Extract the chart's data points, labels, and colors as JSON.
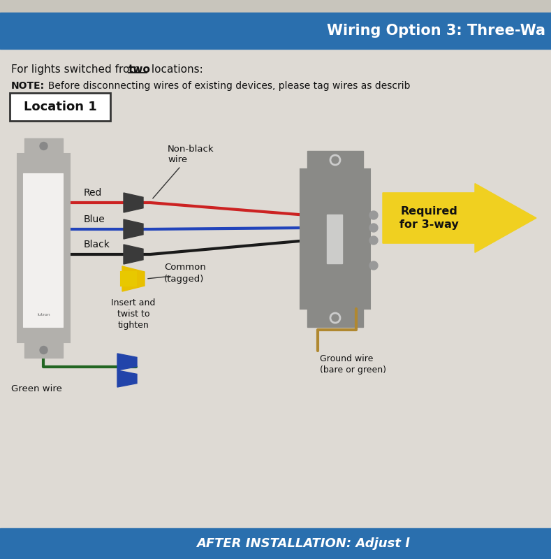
{
  "bg_color": "#dedad4",
  "header_color": "#2a6fae",
  "header_text": "Wiring Option 3: Three-Wa",
  "header_text_color": "#ffffff",
  "footer_color": "#2a6fae",
  "footer_text": "AFTER INSTALLATION: Adjust l",
  "footer_text_color": "#ffffff",
  "line1a": "For lights switched from ",
  "line1b": "two",
  "line1c": " locations:",
  "line2a": "NOTE:",
  "line2b": "  Before disconnecting wires of existing devices, please tag wires as describ",
  "location_label": "Location 1",
  "wire_red": "#cc2222",
  "wire_blue": "#2244bb",
  "wire_black": "#1a1a1a",
  "wire_green": "#226622",
  "wire_bare": "#b08830",
  "label_red": "Red",
  "label_blue": "Blue",
  "label_black": "Black",
  "label_green": "Green wire",
  "label_nonblack": "Non-black\nwire",
  "label_common": "Common\n(tagged)",
  "label_insert": "Insert and\ntwist to\ntighten",
  "label_ground": "Ground wire\n(bare or green)",
  "label_required": "Required\nfor 3-way",
  "arrow_color": "#f0d020"
}
